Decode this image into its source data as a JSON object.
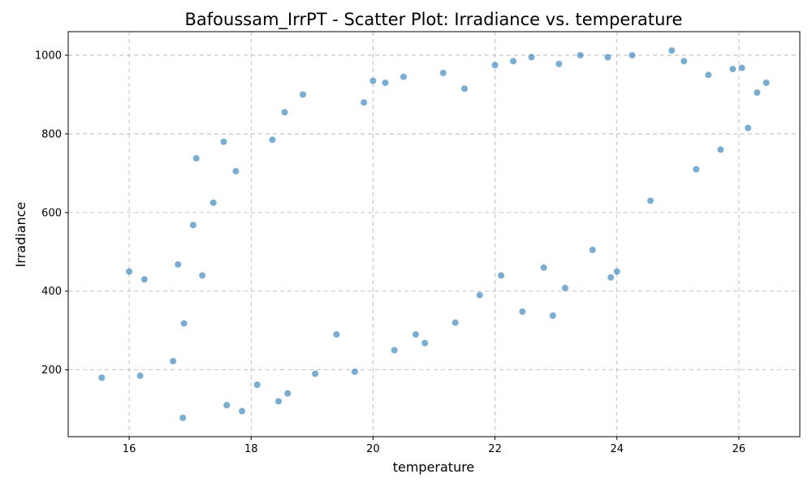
{
  "chart_data": {
    "type": "scatter",
    "title": "Bafoussam_IrrPT - Scatter Plot: Irradiance vs. temperature",
    "xlabel": "temperature",
    "ylabel": "Irradiance",
    "xlim": [
      15,
      27
    ],
    "ylim": [
      30,
      1060
    ],
    "xticks": [
      16,
      18,
      20,
      22,
      24,
      26
    ],
    "yticks": [
      200,
      400,
      600,
      800,
      1000
    ],
    "grid": true,
    "point_color": "#1f77b4",
    "points": [
      [
        15.55,
        180
      ],
      [
        16.0,
        450
      ],
      [
        16.18,
        185
      ],
      [
        16.25,
        430
      ],
      [
        16.72,
        222
      ],
      [
        16.8,
        468
      ],
      [
        16.88,
        78
      ],
      [
        16.9,
        318
      ],
      [
        17.05,
        568
      ],
      [
        17.1,
        738
      ],
      [
        17.2,
        440
      ],
      [
        17.38,
        625
      ],
      [
        17.55,
        780
      ],
      [
        17.75,
        705
      ],
      [
        17.85,
        95
      ],
      [
        17.6,
        110
      ],
      [
        18.1,
        162
      ],
      [
        18.35,
        785
      ],
      [
        18.45,
        120
      ],
      [
        18.55,
        855
      ],
      [
        18.6,
        140
      ],
      [
        18.85,
        900
      ],
      [
        19.05,
        190
      ],
      [
        19.4,
        290
      ],
      [
        19.7,
        195
      ],
      [
        19.85,
        880
      ],
      [
        20.0,
        935
      ],
      [
        20.2,
        930
      ],
      [
        20.35,
        250
      ],
      [
        20.5,
        945
      ],
      [
        20.7,
        290
      ],
      [
        20.85,
        268
      ],
      [
        21.15,
        955
      ],
      [
        21.35,
        320
      ],
      [
        21.5,
        915
      ],
      [
        21.75,
        390
      ],
      [
        22.0,
        975
      ],
      [
        22.1,
        440
      ],
      [
        22.3,
        985
      ],
      [
        22.45,
        348
      ],
      [
        22.6,
        995
      ],
      [
        22.8,
        460
      ],
      [
        22.95,
        338
      ],
      [
        23.05,
        978
      ],
      [
        23.15,
        408
      ],
      [
        23.4,
        1000
      ],
      [
        23.6,
        505
      ],
      [
        23.85,
        995
      ],
      [
        23.9,
        435
      ],
      [
        24.0,
        450
      ],
      [
        24.25,
        1000
      ],
      [
        24.55,
        630
      ],
      [
        24.9,
        1012
      ],
      [
        25.1,
        985
      ],
      [
        25.3,
        710
      ],
      [
        25.5,
        950
      ],
      [
        25.7,
        760
      ],
      [
        25.9,
        965
      ],
      [
        26.05,
        968
      ],
      [
        26.15,
        815
      ],
      [
        26.3,
        905
      ],
      [
        26.45,
        930
      ]
    ]
  }
}
